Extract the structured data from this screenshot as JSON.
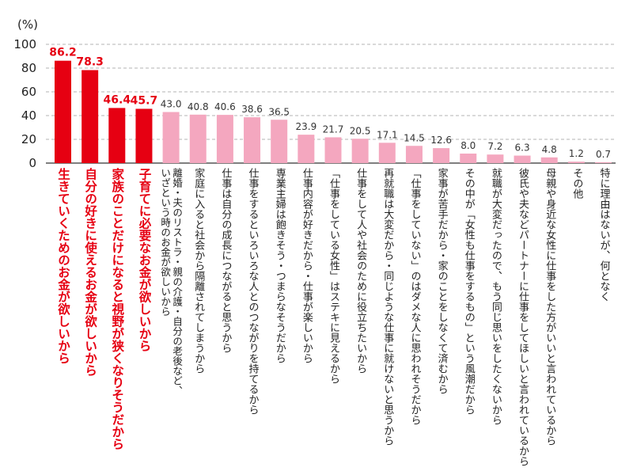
{
  "chart_data": {
    "type": "bar",
    "unit_label": "(%)",
    "ylim": [
      0,
      100
    ],
    "yticks": [
      0,
      20,
      40,
      60,
      80,
      100
    ],
    "grid": true,
    "colors": {
      "highlight": "#e60012",
      "normal": "#f4a7bf",
      "grid": "#b3b3b3",
      "axis": "#333333"
    },
    "categories": [
      "生きていくためのお金が欲しいから",
      "自分の好きに使えるお金が欲しいから",
      "家族のことだけになると視野が狭くなりそうだから",
      "子育てに必要なお金が欲しいから",
      "離婚・夫のリストラ・親の介護・自分の老後など、いざという時のお金が欲しいから",
      "家庭に入ると社会から隔離されてしまうから",
      "仕事は自分の成長につながると思うから",
      "仕事をするといろいろな人とのつながりを持てるから",
      "専業主婦は飽きそう・つまらなそうだから",
      "仕事内容が好きだから・仕事が楽しいから",
      "「仕事をしている女性」はステキに見えるから",
      "仕事をして人や社会のために役立ちたいから",
      "再就職は大変だから・同じような仕事に就けないと思うから",
      "「仕事をしていない」のはダメな人に思われそうだから",
      "家事が苦手だから・家のことをしなくて済むから",
      "その中が「女性も仕事をするもの」という風潮だから",
      "就職が大変だったので、もう同じ思いをしたくないから",
      "彼氏や夫などパートナーに仕事をしてほしいと言われているから",
      "母親や身近な女性に仕事をした方がいいと言われているから",
      "その他",
      "特に理由はないが、何となく"
    ],
    "values": [
      86.2,
      78.3,
      46.4,
      45.7,
      43.0,
      40.8,
      40.6,
      38.6,
      36.5,
      23.9,
      21.7,
      20.5,
      17.1,
      14.5,
      12.6,
      8.0,
      7.2,
      6.3,
      4.8,
      1.2,
      0.7
    ],
    "value_labels": [
      "86.2",
      "78.3",
      "46.4",
      "45.7",
      "43.0",
      "40.8",
      "40.6",
      "38.6",
      "36.5",
      "23.9",
      "21.7",
      "20.5",
      "17.1",
      "14.5",
      "12.6",
      "8.0",
      "7.2",
      "6.3",
      "4.8",
      "1.2",
      "0.7"
    ],
    "highlighted": [
      true,
      true,
      true,
      true,
      false,
      false,
      false,
      false,
      false,
      false,
      false,
      false,
      false,
      false,
      false,
      false,
      false,
      false,
      false,
      false,
      false
    ],
    "label_lines": [
      [
        "生きていくためのお金が欲しいから"
      ],
      [
        "自分の好きに使えるお金が欲しいから"
      ],
      [
        "家族のことだけになると視野が狭くなりそうだから"
      ],
      [
        "子育てに必要なお金が欲しいから"
      ],
      [
        "離婚・夫のリストラ・親の介護・自分の老後など、",
        "いざという時のお金が欲しいから"
      ],
      [
        "家庭に入ると社会から隔離されてしまうから"
      ],
      [
        "仕事は自分の成長につながると思うから"
      ],
      [
        "仕事をするといろいろな人とのつながりを持てるから"
      ],
      [
        "専業主婦は飽きそう・つまらなそうだから"
      ],
      [
        "仕事内容が好きだから・仕事が楽しいから"
      ],
      [
        "「仕事をしている女性」はステキに見えるから"
      ],
      [
        "仕事をして人や社会のために役立ちたいから"
      ],
      [
        "再就職は大変だから・同じような仕事に就けないと思うから"
      ],
      [
        "「仕事をしていない」のはダメな人に思われそうだから"
      ],
      [
        "家事が苦手だから・家のことをしなくて済むから"
      ],
      [
        "その中が「女性も仕事をするもの」という風潮だから"
      ],
      [
        "就職が大変だったので、もう同じ思いをしたくないから"
      ],
      [
        "彼氏や夫などパートナーに仕事をしてほしいと言われているから"
      ],
      [
        "母親や身近な女性に仕事をした方がいいと言われているから"
      ],
      [
        "その他"
      ],
      [
        "特に理由はないが、何となく"
      ]
    ]
  }
}
